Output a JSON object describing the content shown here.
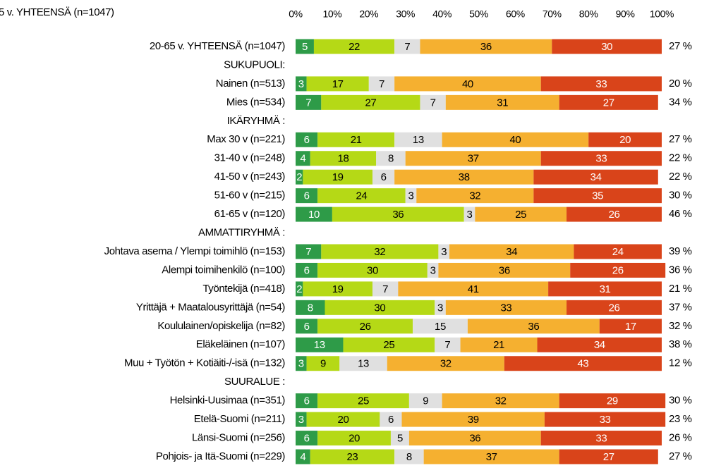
{
  "chart_data": {
    "type": "stacked-bar-horizontal",
    "title": "5 v. YHTEENSÄ (n=1047)",
    "categories": [
      "20-65 v. YHTEENSÄ (n=1047)",
      "SUKUPUOLI:",
      "Nainen (n=513)",
      "Mies (n=534)",
      "IKÄRYHMÄ :",
      "Max 30 v (n=221)",
      "31-40 v (n=248)",
      "41-50 v (n=243)",
      "51-60 v (n=215)",
      "61-65 v (n=120)",
      "AMMATTIRYHMÄ :",
      "Johtava asema / Ylempi toimihlö (n=153)",
      "Alempi toimihenkilö (n=100)",
      "Työntekijä (n=418)",
      "Yrittäjä + Maatalousyrittäjä (n=54)",
      "Koululainen/opiskelija (n=82)",
      "Eläkeläinen (n=107)",
      "Muu + Työtön + Kotiäiti-/-isä (n=132)",
      "SUURALUE :",
      "Helsinki-Uusimaa (n=351)",
      "Etelä-Suomi (n=211)",
      "Länsi-Suomi (n=256)",
      "Pohjois- ja Itä-Suomi (n=229)"
    ],
    "series": [
      {
        "color": "#2e9b48",
        "text_color": "#ffffff",
        "values": [
          5,
          null,
          3,
          7,
          null,
          6,
          4,
          2,
          6,
          10,
          null,
          7,
          6,
          2,
          8,
          6,
          13,
          3,
          null,
          6,
          3,
          6,
          4
        ]
      },
      {
        "color": "#b5d916",
        "text_color": "#000000",
        "values": [
          22,
          null,
          17,
          27,
          null,
          21,
          18,
          19,
          24,
          36,
          null,
          32,
          30,
          19,
          30,
          26,
          25,
          9,
          null,
          25,
          20,
          20,
          23
        ]
      },
      {
        "color": "#e0e0e0",
        "text_color": "#000000",
        "values": [
          7,
          null,
          7,
          7,
          null,
          13,
          8,
          6,
          3,
          3,
          null,
          3,
          3,
          7,
          3,
          15,
          7,
          13,
          null,
          9,
          6,
          5,
          8
        ]
      },
      {
        "color": "#f5b030",
        "text_color": "#000000",
        "values": [
          36,
          null,
          40,
          31,
          null,
          40,
          37,
          38,
          32,
          25,
          null,
          34,
          36,
          41,
          33,
          36,
          21,
          32,
          null,
          32,
          39,
          36,
          37
        ]
      },
      {
        "color": "#d9441a",
        "text_color": "#ffffff",
        "values": [
          30,
          null,
          33,
          27,
          null,
          20,
          33,
          34,
          35,
          26,
          null,
          24,
          26,
          31,
          26,
          17,
          34,
          43,
          null,
          29,
          33,
          33,
          27
        ]
      }
    ],
    "right_column": [
      "27 %",
      null,
      "20 %",
      "34 %",
      null,
      "27 %",
      "22 %",
      "22 %",
      "30 %",
      "46 %",
      null,
      "39 %",
      "36 %",
      "21 %",
      "37 %",
      "32 %",
      "38 %",
      "12 %",
      null,
      "30 %",
      "23 %",
      "26 %",
      "27 %"
    ],
    "xlim": [
      0,
      100
    ],
    "xticks": [
      {
        "value": 0,
        "label": "0%"
      },
      {
        "value": 10,
        "label": "10%"
      },
      {
        "value": 20,
        "label": "20%"
      },
      {
        "value": 30,
        "label": "30%"
      },
      {
        "value": 40,
        "label": "40%"
      },
      {
        "value": 50,
        "label": "50%"
      },
      {
        "value": 60,
        "label": "60%"
      },
      {
        "value": 70,
        "label": "70%"
      },
      {
        "value": 80,
        "label": "80%"
      },
      {
        "value": 90,
        "label": "90%"
      },
      {
        "value": 100,
        "label": "100%"
      }
    ]
  }
}
